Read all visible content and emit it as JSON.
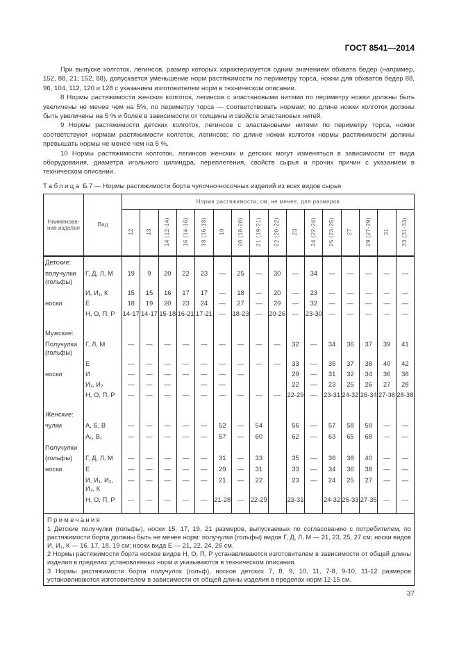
{
  "header": {
    "doc_id": "ГОСТ 8541—2014"
  },
  "paragraphs": [
    "При выпуске колготок, легинсов, размер которых характеризуется одним значением обхвата бедер (например, 152, 88, 21; 152, 88), допускается уменьшение норм растяжимости по периметру торса, ножки для обхватов бедер 88, 96, 104, 112, 120 и 128 с указанием изготовителем норм в техническом описании.",
    "8 Нормы растяжимости женских колготок, легинсов с эластановыми нитями по периметру ножки должны быть увеличены не менее чем на 5%, по периметру торса — соответствовать нормам; по длине ножки колготок должны быть увеличены на 5 % и более в зависимости от толщины и свойств эластановых нитей.",
    "9 Нормы растяжимости детских колготок, легинсов с эластановыми нитями по периметру торса, ножки соответствуют нормам растяжимости колготок, легинсов; по длине ножки колготок нормы растяжимости  должны превышать нормы не менее чем на 5 %.",
    "10 Нормы растяжимости колготок, легинсов женских и детских могут изменяться в зависимости от вида оборудования, диаметра игольного цилиндра, переплетения, свойств сырья и прочих причин с указанием в техническом описании."
  ],
  "table": {
    "caption_prefix": "Таблица",
    "caption_text": " Б.7 — Нормы растяжимости борта чулочно-носочных изделий из всех видов сырья",
    "col_name": "Наименова-ние изделия",
    "col_kind": "Вид",
    "col_group": "Норма растяжимости, см, не менее, для размеров",
    "sizes": [
      "12",
      "13",
      "14 (12-14)",
      "16 (14-16)",
      "18 (16-18)",
      "19",
      "20 (18-20)",
      "21 (19-21)",
      "22 (20-22)",
      "23",
      "24 (22-24)",
      "25 (23-25)",
      "27",
      "29 (27-29)",
      "31",
      "33 (31-33)"
    ],
    "rows": [
      {
        "name": "Детские:",
        "kind": "",
        "values": [
          "",
          "",
          "",
          "",
          "",
          "",
          "",
          "",
          "",
          "",
          "",
          "",
          "",
          "",
          "",
          ""
        ]
      },
      {
        "name": "получулки (гольфы)",
        "kind": "Г, Д, Л, М",
        "values": [
          "19",
          "9",
          "20",
          "22",
          "23",
          "—",
          "25",
          "—",
          "30",
          "—",
          "34",
          "—",
          "—",
          "—",
          "—",
          "—"
        ]
      },
      {
        "name": "",
        "kind": "И, И₁, К",
        "values": [
          "15",
          "15",
          "16",
          "17",
          "17",
          "—",
          "18",
          "—",
          "20",
          "—",
          "23",
          "—",
          "—",
          "—",
          "—",
          "—"
        ]
      },
      {
        "name": "носки",
        "kind": "Е",
        "values": [
          "18",
          "19",
          "20",
          "23",
          "24",
          "—",
          "27",
          "—",
          "29",
          "—",
          "32",
          "—",
          "—",
          "—",
          "—",
          "—"
        ]
      },
      {
        "name": "",
        "kind": "Н, О, П, Р",
        "values": [
          "14-17",
          "14-17",
          "15-18",
          "16-21",
          "17-21",
          "—",
          "18-23",
          "—",
          "20-26",
          "—",
          "23-30",
          "—",
          "—",
          "—",
          "—",
          "—"
        ]
      },
      {
        "name": "Мужские:",
        "kind": "",
        "values": [
          "",
          "",
          "",
          "",
          "",
          "",
          "",
          "",
          "",
          "",
          "",
          "",
          "",
          "",
          "",
          ""
        ]
      },
      {
        "name": "Получулки (гольфы)",
        "kind": "Г, Л, М",
        "values": [
          "—",
          "—",
          "—",
          "—",
          "—",
          "—",
          "—",
          "—",
          "—",
          "32",
          "—",
          "34",
          "36",
          "37",
          "39",
          "41"
        ]
      },
      {
        "name": "",
        "kind": "Е",
        "values": [
          "—",
          "—",
          "—",
          "—",
          "—",
          "—",
          "—",
          "—",
          "—",
          "33",
          "—",
          "35",
          "37",
          "38",
          "40",
          "42"
        ]
      },
      {
        "name": "носки",
        "kind": "И",
        "values": [
          "—",
          "—",
          "—",
          "—",
          "—",
          "—",
          "—",
          "",
          "",
          "29",
          "—",
          "31",
          "32",
          "34",
          "36",
          "38"
        ]
      },
      {
        "name": "",
        "kind": "И₁, И₂",
        "values": [
          "—",
          "—",
          "—",
          "",
          "—",
          "—",
          "",
          "",
          "",
          "22",
          "—",
          "23",
          "25",
          "26",
          "27",
          "28"
        ]
      },
      {
        "name": "",
        "kind": "Н, О, П, Р",
        "values": [
          "—",
          "—",
          "—",
          "—",
          "—",
          "—",
          "—",
          "—",
          "—",
          "22-29",
          "—",
          "23-31",
          "24-32",
          "26-34",
          "27-36",
          "28-38"
        ]
      },
      {
        "name": "Женские:",
        "kind": "",
        "values": [
          "",
          "",
          "",
          "",
          "",
          "",
          "",
          "",
          "",
          "",
          "",
          "",
          "",
          "",
          "",
          ""
        ]
      },
      {
        "name": "чулки",
        "kind": "А, Б, В",
        "values": [
          "—",
          "—",
          "—",
          "—",
          "—",
          "52",
          "—",
          "54",
          "",
          "56",
          "—",
          "57",
          "58",
          "59",
          "—",
          "—"
        ]
      },
      {
        "name": "",
        "kind": "А₁, В₁",
        "values": [
          "—",
          "—",
          "—",
          "—",
          "—",
          "57",
          "—",
          "60",
          "",
          "62",
          "—",
          "63",
          "65",
          "68",
          "—",
          "—"
        ]
      },
      {
        "name": "Получулки",
        "kind": "",
        "values": [
          "",
          "",
          "",
          "",
          "",
          "",
          "",
          "",
          "",
          "",
          "",
          "",
          "",
          "",
          "",
          ""
        ]
      },
      {
        "name": "(гольфы)",
        "kind": "Г, Д, Л, М",
        "values": [
          "—",
          "—",
          "—",
          "—",
          "—",
          "31",
          "—",
          "33",
          "",
          "35",
          "—",
          "36",
          "38",
          "40",
          "—",
          "—"
        ]
      },
      {
        "name": "носки",
        "kind": "Е",
        "values": [
          "—",
          "—",
          "—",
          "—",
          "—",
          "29",
          "—",
          "31",
          "",
          "33",
          "—",
          "34",
          "36",
          "38",
          "—",
          "—"
        ]
      },
      {
        "name": "",
        "kind": "И, И₁, И₂, И₃, К",
        "values": [
          "—",
          "—",
          "—",
          "—",
          "—",
          "21",
          "—",
          "22",
          "",
          "23",
          "—",
          "24",
          "25",
          "27",
          "—",
          "—"
        ]
      },
      {
        "name": "",
        "kind": "Н, О, П, Р",
        "values": [
          "—",
          "—",
          "—",
          "—",
          "—",
          "21-28",
          "—",
          "22-29",
          "",
          "23-31",
          "",
          "24-32",
          "25-33",
          "27-35",
          "—",
          "—"
        ]
      }
    ]
  },
  "notes": {
    "title": "Примечания",
    "items": [
      "1 Детские получулки (гольфы), носки 15, 17, 19, 21 размеров, выпускаемых по согласованию с потребителем, по растяжимости борта должны быть не менее норм: получулки (гольфы) видов Г, Д, Л, М — 21, 23, 25, 27 см; носки видов И, И₁, К — 16, 17, 18, 19 см; носки вида Е — 21, 22, 24, 26 см.",
      "2 Нормы растяжимости борта носков видов Н, О, П, Р устанавливаются изготовителем в зависимости от общей длины изделия в пределах установленных норм и указываются в техническом описании.",
      "3 Нормы растяжимости борта получулок (гольф), носков детских 7, 8, 9, 10, 11, 7-8, 9-10, 11-12 размеров устанавливаются изготовителем в зависимости от общей длины изделия в пределах норм 12-15 см."
    ]
  },
  "page_number": "37"
}
